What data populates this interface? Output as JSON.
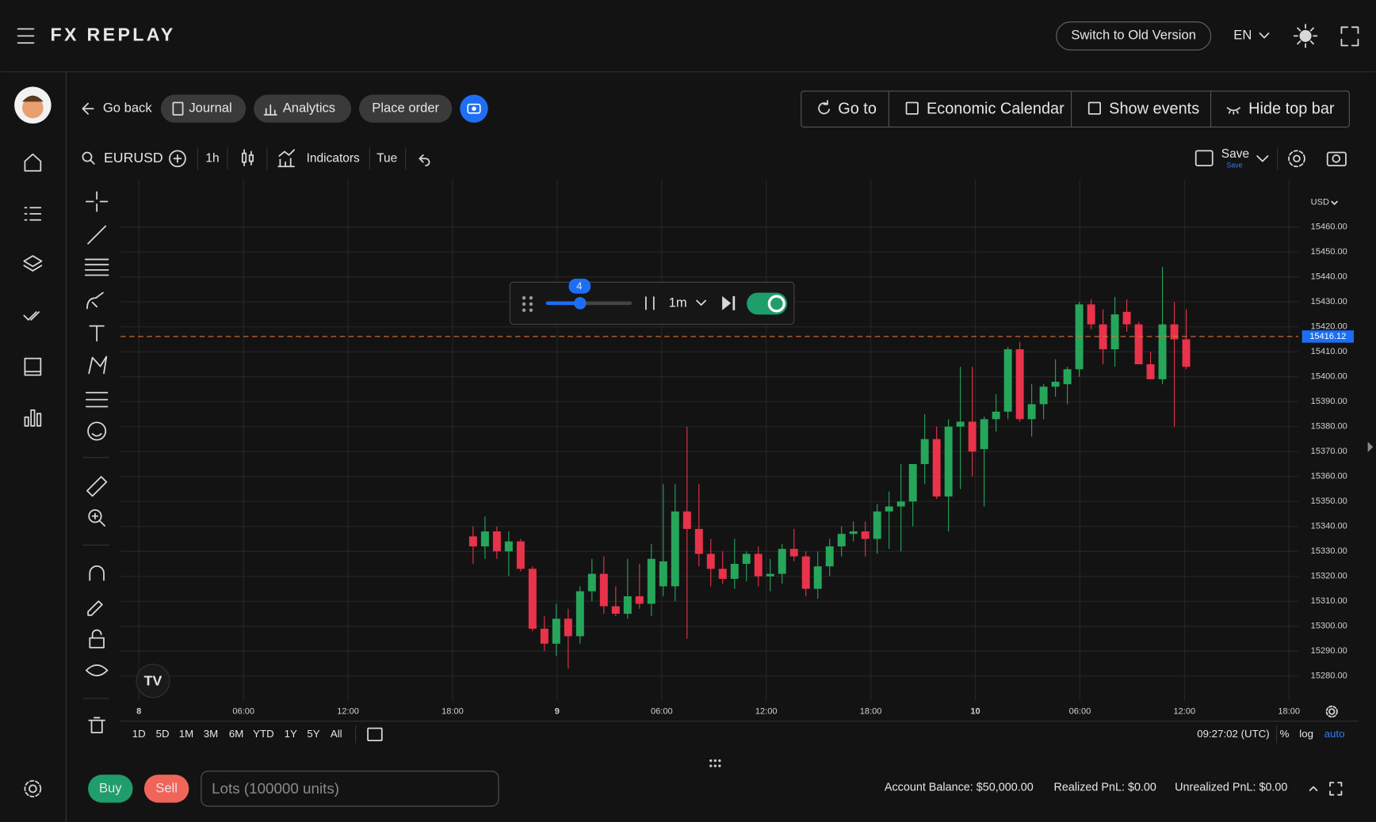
{
  "header": {
    "logo": "FX REPLAY",
    "switch_button": "Switch to Old Version",
    "language": "EN"
  },
  "nav": {
    "go_back": "Go back",
    "journal": "Journal",
    "analytics": "Analytics",
    "place_order": "Place order",
    "go_to": "Go to",
    "economic_calendar": "Economic Calendar",
    "show_events": "Show events",
    "hide_top_bar": "Hide top bar"
  },
  "toolbar": {
    "symbol": "EURUSD",
    "interval": "1h",
    "indicators": "Indicators",
    "day": "Tue",
    "save": "Save",
    "save_sub": "Save"
  },
  "replay": {
    "speed": "4",
    "step": "1m"
  },
  "chart_data": {
    "type": "candlestick",
    "currency": "USD",
    "up_color": "#26a65b",
    "down_color": "#e8334a",
    "ylim": [
      15270,
      15479
    ],
    "yticks": [
      {
        "value": 15280,
        "label": "15280.00"
      },
      {
        "value": 15290,
        "label": "15290.00"
      },
      {
        "value": 15300,
        "label": "15300.00"
      },
      {
        "value": 15310,
        "label": "15310.00"
      },
      {
        "value": 15320,
        "label": "15320.00"
      },
      {
        "value": 15330,
        "label": "15330.00"
      },
      {
        "value": 15340,
        "label": "15340.00"
      },
      {
        "value": 15350,
        "label": "15350.00"
      },
      {
        "value": 15360,
        "label": "15360.00"
      },
      {
        "value": 15370,
        "label": "15370.00"
      },
      {
        "value": 15380,
        "label": "15380.00"
      },
      {
        "value": 15390,
        "label": "15390.00"
      },
      {
        "value": 15400,
        "label": "15400.00"
      },
      {
        "value": 15410,
        "label": "15410.00"
      },
      {
        "value": 15420,
        "label": "15420.00"
      },
      {
        "value": 15430,
        "label": "15430.00"
      },
      {
        "value": 15440,
        "label": "15440.00"
      },
      {
        "value": 15450,
        "label": "15450.00"
      },
      {
        "value": 15460,
        "label": "15460.00"
      }
    ],
    "x_labels": [
      "8",
      "06:00",
      "12:00",
      "18:00",
      "9",
      "06:00",
      "12:00",
      "18:00",
      "10",
      "06:00",
      "12:00",
      "18:00"
    ],
    "last_price": {
      "value": 15416.12,
      "label": "15416.12"
    },
    "candles": [
      [
        15336,
        15340,
        15325,
        15332
      ],
      [
        15332,
        15344,
        15327,
        15338
      ],
      [
        15338,
        15340,
        15327,
        15330
      ],
      [
        15330,
        15338,
        15320,
        15334
      ],
      [
        15334,
        15335,
        15322,
        15323
      ],
      [
        15323,
        15324,
        15298,
        15299
      ],
      [
        15299,
        15304,
        15290,
        15293
      ],
      [
        15293,
        15309,
        15288,
        15303
      ],
      [
        15303,
        15307,
        15283,
        15296
      ],
      [
        15296,
        15316,
        15293,
        15314
      ],
      [
        15314,
        15327,
        15310,
        15321
      ],
      [
        15321,
        15328,
        15305,
        15308
      ],
      [
        15308,
        15316,
        15304,
        15305
      ],
      [
        15305,
        15327,
        15303,
        15312
      ],
      [
        15312,
        15325,
        15307,
        15309
      ],
      [
        15309,
        15333,
        15304,
        15327
      ],
      [
        15316,
        15357,
        15312,
        15326
      ],
      [
        15316,
        15357,
        15310,
        15346
      ],
      [
        15346,
        15380,
        15295,
        15339
      ],
      [
        15339,
        15357,
        15324,
        15329
      ],
      [
        15329,
        15335,
        15316,
        15323
      ],
      [
        15323,
        15330,
        15317,
        15319
      ],
      [
        15319,
        15335,
        15315,
        15325
      ],
      [
        15325,
        15330,
        15318,
        15329
      ],
      [
        15329,
        15332,
        15316,
        15320
      ],
      [
        15320,
        15327,
        15314,
        15321
      ],
      [
        15321,
        15333,
        15317,
        15331
      ],
      [
        15331,
        15339,
        15326,
        15328
      ],
      [
        15328,
        15330,
        15312,
        15315
      ],
      [
        15315,
        15330,
        15311,
        15324
      ],
      [
        15324,
        15335,
        15320,
        15332
      ],
      [
        15332,
        15340,
        15328,
        15337
      ],
      [
        15337,
        15342,
        15334,
        15338
      ],
      [
        15338,
        15342,
        15328,
        15335
      ],
      [
        15335,
        15349,
        15329,
        15346
      ],
      [
        15346,
        15354,
        15331,
        15348
      ],
      [
        15348,
        15365,
        15330,
        15350
      ],
      [
        15350,
        15364,
        15340,
        15365
      ],
      [
        15365,
        15385,
        15357,
        15375
      ],
      [
        15375,
        15380,
        15351,
        15352
      ],
      [
        15352,
        15383,
        15338,
        15380
      ],
      [
        15380,
        15404,
        15355,
        15382
      ],
      [
        15382,
        15404,
        15360,
        15370
      ],
      [
        15371,
        15384,
        15348,
        15383
      ],
      [
        15383,
        15393,
        15378,
        15386
      ],
      [
        15386,
        15412,
        15383,
        15411
      ],
      [
        15411,
        15414,
        15382,
        15383
      ],
      [
        15383,
        15397,
        15376,
        15389
      ],
      [
        15389,
        15397,
        15383,
        15396
      ],
      [
        15396,
        15407,
        15392,
        15398
      ],
      [
        15397,
        15404,
        15389,
        15403
      ],
      [
        15403,
        15430,
        15400,
        15429
      ],
      [
        15429,
        15431,
        15419,
        15421
      ],
      [
        15421,
        15427,
        15405,
        15411
      ],
      [
        15411,
        15432,
        15404,
        15425
      ],
      [
        15426,
        15431,
        15418,
        15421
      ],
      [
        15421,
        15422,
        15405,
        15405
      ],
      [
        15405,
        15410,
        15400,
        15399
      ],
      [
        15399,
        15444,
        15397,
        15421
      ],
      [
        15421,
        15430,
        15380,
        15415
      ],
      [
        15415,
        15427,
        15403,
        15404
      ]
    ]
  },
  "bottom": {
    "ranges": [
      "1D",
      "5D",
      "1M",
      "3M",
      "6M",
      "YTD",
      "1Y",
      "5Y",
      "All"
    ],
    "clock": "09:27:02 (UTC)",
    "percent": "%",
    "log": "log",
    "auto": "auto"
  },
  "order": {
    "buy": "Buy",
    "sell": "Sell",
    "lots_placeholder": "Lots (100000 units)",
    "account_balance": "Account Balance: $50,000.00",
    "realized_pnl": "Realized PnL: $0.00",
    "unrealized_pnl": "Unrealized PnL: $0.00"
  }
}
